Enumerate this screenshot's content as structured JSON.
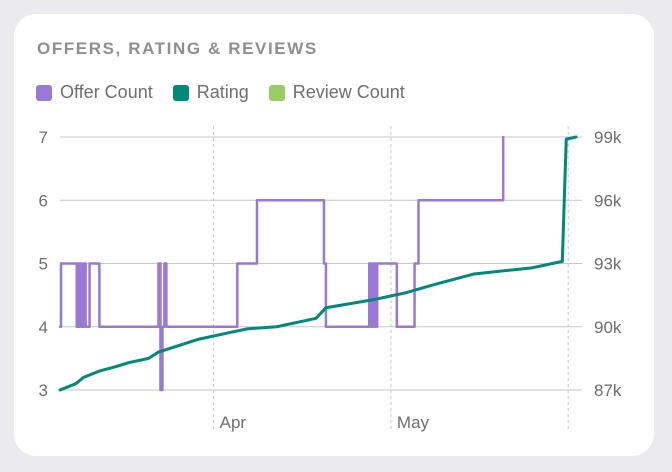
{
  "colors": {
    "offer_count": "#9a78d6",
    "rating": "#00897b",
    "review_count": "#9ccc65",
    "grid": "#c7c7cc",
    "tick_text": "#6e6e73"
  },
  "chart_data": {
    "type": "line",
    "title": "OFFERS, RATING & REVIEWS",
    "legend": [
      {
        "name": "Offer Count",
        "color": "#9a78d6"
      },
      {
        "name": "Rating",
        "color": "#00897b"
      },
      {
        "name": "Review Count",
        "color": "#9ccc65"
      }
    ],
    "legend_position": "top-left",
    "x_ticks": [
      "Apr",
      "May"
    ],
    "y_left": {
      "range": [
        3,
        7
      ],
      "ticks": [
        "3",
        "4",
        "5",
        "6",
        "7"
      ]
    },
    "y_right": {
      "range": [
        87000,
        99000
      ],
      "ticks": [
        "87k",
        "90k",
        "93k",
        "96k",
        "99k"
      ]
    },
    "grid": true,
    "series": [
      {
        "name": "Offer Count",
        "axis": "left",
        "step": true,
        "x": [
          0,
          0.5,
          8.5,
          9,
          9.5,
          10,
          11,
          12,
          13,
          15,
          20,
          50,
          51,
          52,
          53,
          54,
          90,
          100,
          134,
          135,
          157,
          158,
          159,
          160,
          161,
          170,
          171,
          180,
          182,
          200,
          225
        ],
        "y": [
          4,
          5,
          4,
          5,
          4,
          5,
          4,
          5,
          4,
          5,
          4,
          5,
          3,
          4,
          5,
          4,
          5,
          6,
          5,
          4,
          5,
          4,
          5,
          4,
          5,
          5,
          4,
          5,
          6,
          6,
          7
        ]
      },
      {
        "name": "Rating",
        "axis": "right",
        "step": false,
        "x": [
          0,
          8,
          12,
          20,
          28,
          35,
          45,
          50,
          70,
          90,
          95,
          110,
          130,
          135,
          160,
          175,
          190,
          210,
          230,
          240,
          250,
          255,
          257,
          262
        ],
        "y": [
          87000,
          87300,
          87600,
          87900,
          88100,
          88300,
          88500,
          88800,
          89400,
          89800,
          89900,
          90000,
          90400,
          90900,
          91300,
          91600,
          92000,
          92500,
          92700,
          92800,
          93000,
          93100,
          98900,
          99000
        ]
      }
    ]
  }
}
